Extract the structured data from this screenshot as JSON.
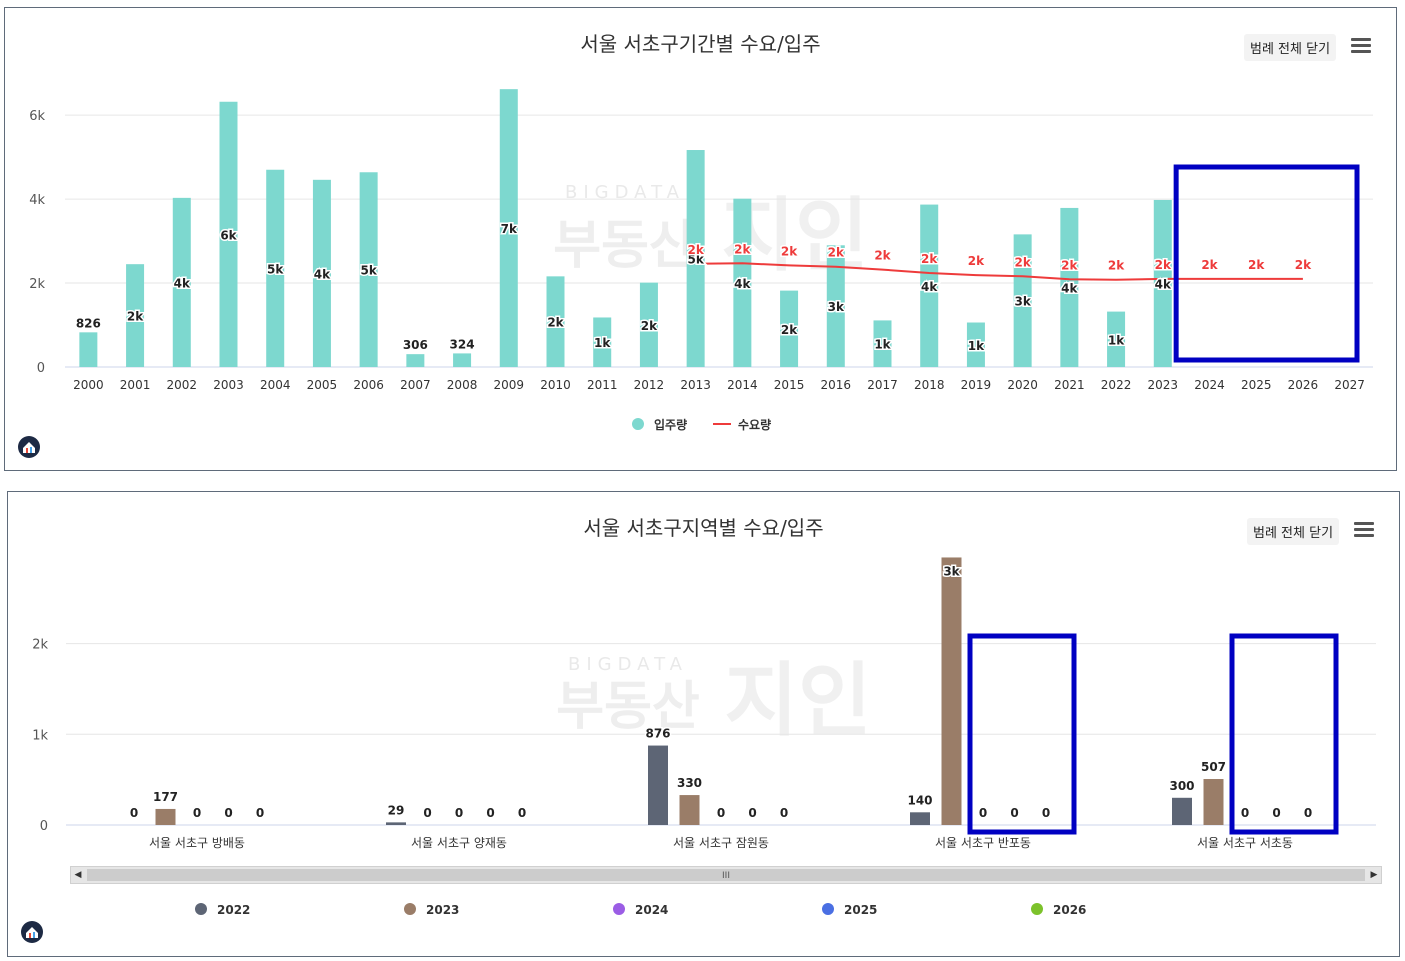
{
  "colors": {
    "teal": "#7dd8cf",
    "red": "#ee3b3b",
    "highlight": "#0000c2",
    "s2022": "#5d6575",
    "s2023": "#9a7d68",
    "s2024": "#9b5de5",
    "s2025": "#4a6fe3",
    "s2026": "#7cc22b",
    "grid": "#e6e6e6",
    "axis": "#ccd6eb"
  },
  "chart1": {
    "legend_close": "범례 전체 닫기",
    "menu_icon": "hamburger-menu-icon",
    "logo_icon": "home-logo-icon",
    "watermark": [
      "BIGDATA",
      "부동산",
      "지인"
    ]
  },
  "chart2": {
    "legend_close": "범례 전체 닫기",
    "menu_icon": "hamburger-menu-icon",
    "logo_icon": "home-logo-icon",
    "watermark": [
      "BIGDATA",
      "부동산",
      "지인"
    ],
    "scroll_grip": "III"
  },
  "chart_data": [
    {
      "type": "bar",
      "title": "서울 서초구기간별 수요/입주",
      "categories": [
        "2000",
        "2001",
        "2002",
        "2003",
        "2004",
        "2005",
        "2006",
        "2007",
        "2008",
        "2009",
        "2010",
        "2011",
        "2012",
        "2013",
        "2014",
        "2015",
        "2016",
        "2017",
        "2018",
        "2019",
        "2020",
        "2021",
        "2022",
        "2023",
        "2024",
        "2025",
        "2026",
        "2027"
      ],
      "ylim": [
        0,
        6600
      ],
      "yticks": [
        0,
        2000,
        4000,
        6000
      ],
      "ytick_labels": [
        "0",
        "2k",
        "4k",
        "6k"
      ],
      "grid": true,
      "legend_position": "bottom-center",
      "series": [
        {
          "name": "입주량",
          "type": "bar",
          "values": [
            826,
            2450,
            4030,
            6320,
            4700,
            4460,
            4640,
            306,
            324,
            6620,
            2160,
            1180,
            2010,
            5170,
            4010,
            1820,
            2900,
            1110,
            3870,
            1060,
            3160,
            3790,
            1320,
            3980,
            null,
            null,
            null,
            null
          ],
          "labels": [
            "826",
            "2k",
            "4k",
            "6k",
            "5k",
            "4k",
            "5k",
            "306",
            "324",
            "7k",
            "2k",
            "1k",
            "2k",
            "5k",
            "4k",
            "2k",
            "3k",
            "1k",
            "4k",
            "1k",
            "3k",
            "4k",
            "1k",
            "4k",
            "",
            "",
            "",
            ""
          ]
        },
        {
          "name": "수요량",
          "type": "line",
          "values": [
            null,
            null,
            null,
            null,
            null,
            null,
            null,
            null,
            null,
            null,
            null,
            null,
            null,
            2460,
            2470,
            2420,
            2390,
            2320,
            2240,
            2190,
            2160,
            2090,
            2080,
            2100,
            2100,
            2100,
            2100,
            null
          ],
          "labels": [
            "",
            "",
            "",
            "",
            "",
            "",
            "",
            "",
            "",
            "",
            "",
            "",
            "",
            "2k",
            "2k",
            "2k",
            "2k",
            "2k",
            "2k",
            "2k",
            "2k",
            "2k",
            "2k",
            "2k",
            "2k",
            "2k",
            "2k",
            ""
          ]
        }
      ],
      "annotations": [
        {
          "type": "box",
          "from_category": "2024",
          "to_category": "2027"
        }
      ]
    },
    {
      "type": "bar",
      "title": "서울 서초구지역별 수요/입주",
      "categories": [
        "서울 서초구 방배동",
        "서울 서초구 양재동",
        "서울 서초구 잠원동",
        "서울 서초구 반포동",
        "서울 서초구 서초동"
      ],
      "ylim": [
        0,
        2900
      ],
      "yticks": [
        0,
        1000,
        2000
      ],
      "ytick_labels": [
        "0",
        "1k",
        "2k"
      ],
      "grid": true,
      "legend_position": "bottom",
      "series": [
        {
          "name": "2022",
          "values": [
            0,
            29,
            876,
            140,
            300
          ],
          "labels": [
            "0",
            "29",
            "876",
            "140",
            "300"
          ]
        },
        {
          "name": "2023",
          "values": [
            177,
            0,
            330,
            2950,
            507
          ],
          "labels": [
            "177",
            "0",
            "330",
            "3k",
            "507"
          ]
        },
        {
          "name": "2024",
          "values": [
            0,
            0,
            0,
            0,
            0
          ],
          "labels": [
            "0",
            "0",
            "0",
            "0",
            "0"
          ]
        },
        {
          "name": "2025",
          "values": [
            0,
            0,
            0,
            0,
            0
          ],
          "labels": [
            "0",
            "0",
            "0",
            "0",
            "0"
          ]
        },
        {
          "name": "2026",
          "values": [
            0,
            0,
            0,
            0,
            0
          ],
          "labels": [
            "0",
            "0",
            "0",
            "0",
            "0"
          ]
        }
      ],
      "annotations": [
        {
          "type": "box",
          "category": "서울 서초구 반포동",
          "series": [
            "2024",
            "2025",
            "2026"
          ]
        },
        {
          "type": "box",
          "category": "서울 서초구 서초동",
          "series": [
            "2024",
            "2025",
            "2026"
          ]
        }
      ]
    }
  ]
}
